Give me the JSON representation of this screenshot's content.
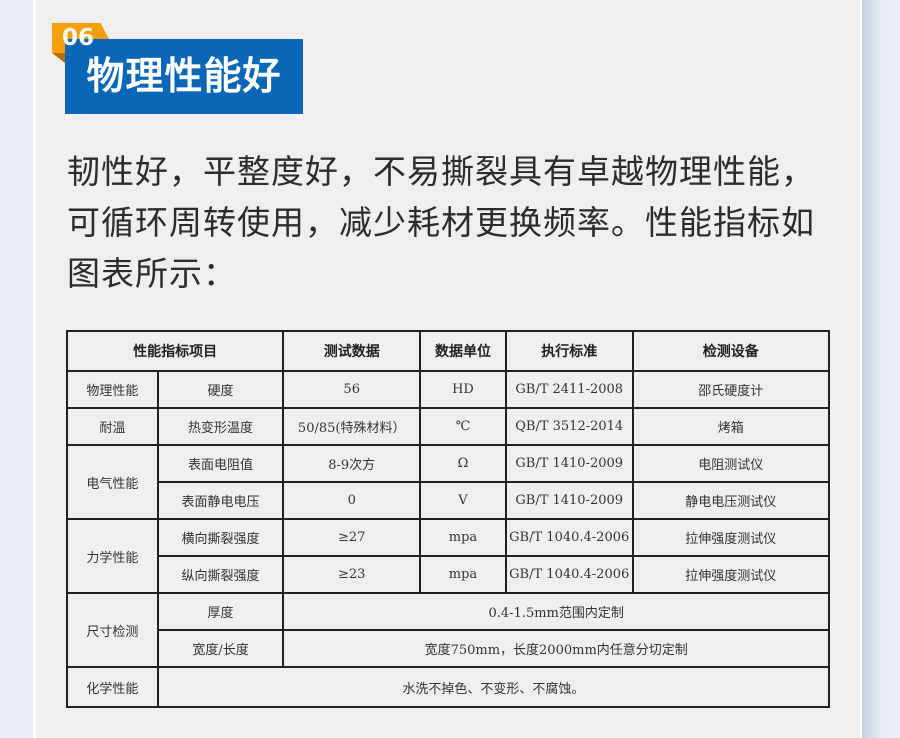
{
  "badge": {
    "number": "06",
    "title": "物理性能好"
  },
  "description": "韧性好，平整度好，不易撕裂具有卓越物理性能，可循环周转使用，减少耗材更换频率。性能指标如图表所示：",
  "colors": {
    "accent_blue": "#0a67b8",
    "accent_orange": "#f59f0a",
    "panel": "#f1eeef"
  },
  "table": {
    "headers": [
      "性能指标项目",
      "测试数据",
      "数据单位",
      "执行标准",
      "检测设备"
    ],
    "groups": {
      "physical": "物理性能",
      "heat": "耐温",
      "electric": "电气性能",
      "mechanical": "力学性能",
      "size": "尺寸检测",
      "chemical": "化学性能"
    },
    "rows": [
      {
        "item": "硬度",
        "value": "56",
        "unit": "HD",
        "standard": "GB/T 2411-2008",
        "device": "邵氏硬度计"
      },
      {
        "item": "热变形温度",
        "value": "50/85(特殊材料）",
        "unit": "℃",
        "standard": "QB/T 3512-2014",
        "device": "烤箱"
      },
      {
        "item": "表面电阻值",
        "value": "8-9次方",
        "unit": "Ω",
        "standard": "GB/T 1410-2009",
        "device": "电阻测试仪"
      },
      {
        "item": "表面静电电压",
        "value": "0",
        "unit": "V",
        "standard": "GB/T 1410-2009",
        "device": "静电电压测试仪"
      },
      {
        "item": "横向撕裂强度",
        "value": "≥27",
        "unit": "mpa",
        "standard": "GB/T 1040.4-2006",
        "device": "拉伸强度测试仪"
      },
      {
        "item": "纵向撕裂强度",
        "value": "≥23",
        "unit": "mpa",
        "standard": "GB/T 1040.4-2006",
        "device": "拉伸强度测试仪"
      },
      {
        "item": "厚度",
        "merged": "0.4-1.5mm范围内定制"
      },
      {
        "item": "宽度/长度",
        "merged": "宽度750mm，长度2000mm内任意分切定制"
      },
      {
        "merged": "水洗不掉色、不变形、不腐蚀。"
      }
    ]
  }
}
